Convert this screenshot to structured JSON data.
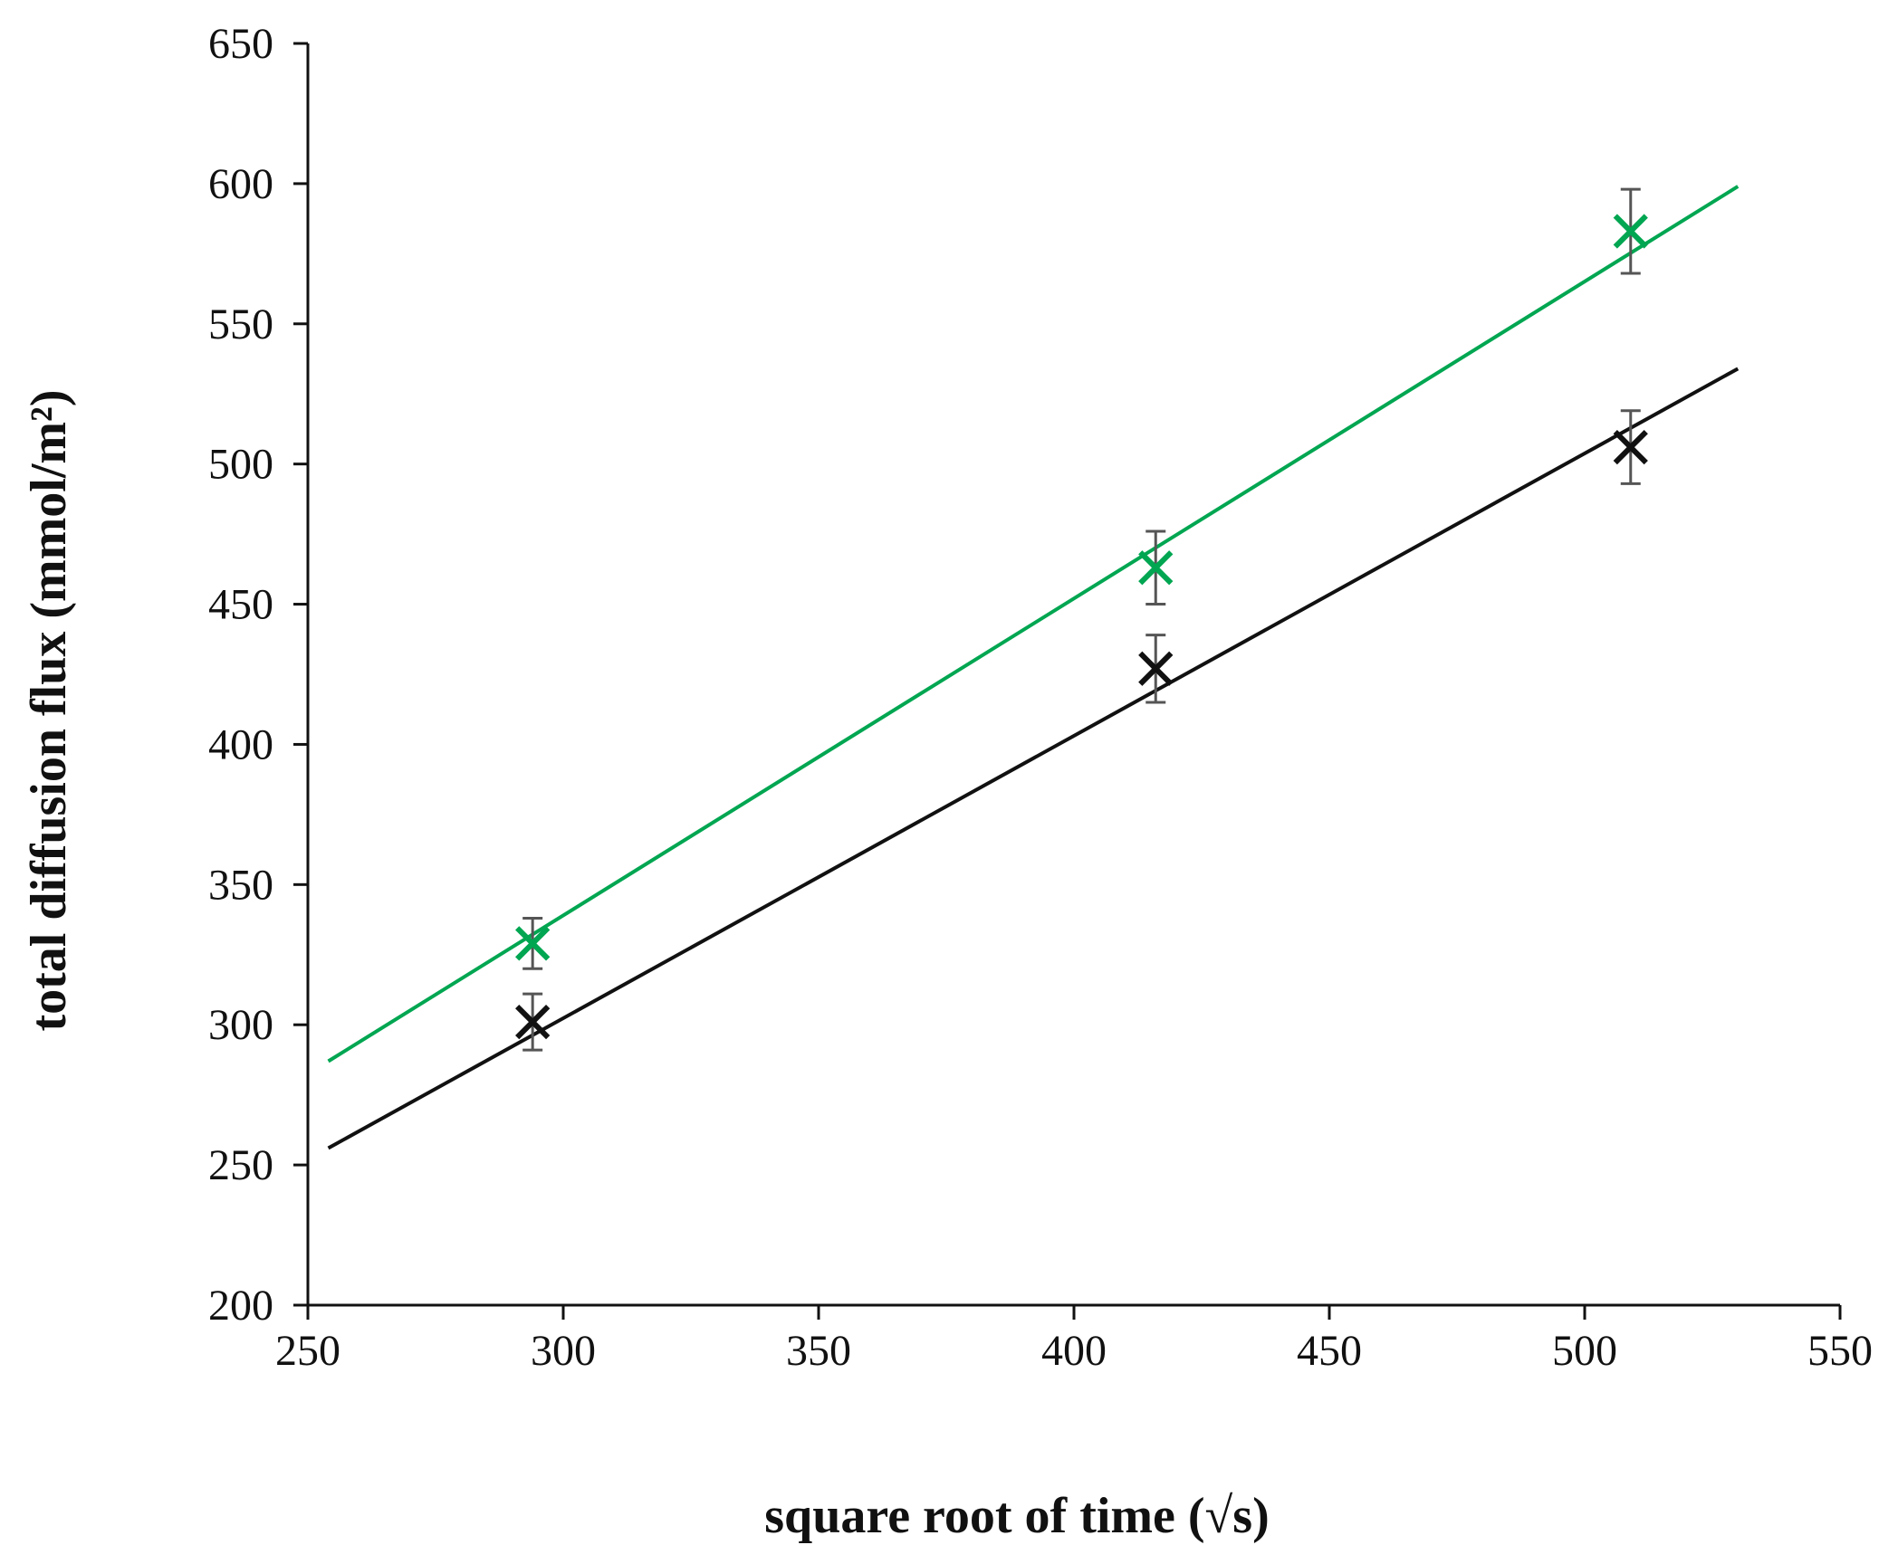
{
  "chart_data": {
    "type": "scatter",
    "title": "",
    "xlabel": "square root of time (√s)",
    "ylabel": "total diffusion flux (mmol/m²)",
    "xlim": [
      250,
      550
    ],
    "ylim": [
      200,
      650
    ],
    "xticks": [
      250,
      300,
      350,
      400,
      450,
      500,
      550
    ],
    "yticks": [
      200,
      250,
      300,
      350,
      400,
      450,
      500,
      550,
      600,
      650
    ],
    "grid": false,
    "legend": "none",
    "series": [
      {
        "name": "green series",
        "color": "#00a651",
        "marker": "x",
        "x": [
          294,
          416,
          509
        ],
        "y": [
          329,
          463,
          583
        ],
        "yerr": [
          9,
          13,
          15
        ],
        "trendline": {
          "x": [
            254,
            530
          ],
          "y": [
            287,
            599
          ]
        }
      },
      {
        "name": "black series",
        "color": "#111111",
        "marker": "x",
        "x": [
          294,
          416,
          509
        ],
        "y": [
          301,
          427,
          506
        ],
        "yerr": [
          10,
          12,
          13
        ],
        "trendline": {
          "x": [
            254,
            530
          ],
          "y": [
            256,
            534
          ]
        }
      }
    ],
    "errorbar_color": "#555555"
  }
}
